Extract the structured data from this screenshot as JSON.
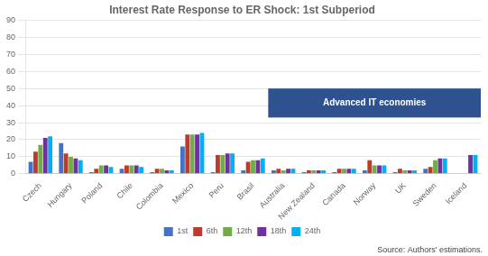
{
  "chart_data": {
    "type": "bar",
    "title": "Interest Rate Response to ER Shock: 1st Subperiod",
    "categories": [
      "Czech",
      "Hungary",
      "Poland",
      "Chile",
      "Colombia",
      "Mexico",
      "Peru",
      "Brasil",
      "Australia",
      "New Zealand",
      "Canada",
      "Norway",
      "UK",
      "Sweden",
      "Iceland"
    ],
    "series": [
      {
        "name": "1st",
        "color": "#4472C4",
        "values": [
          7,
          18,
          1,
          3,
          1,
          16,
          1,
          2,
          2,
          1,
          1,
          2,
          1,
          3,
          0
        ]
      },
      {
        "name": "6th",
        "color": "#C0392B",
        "values": [
          13,
          12,
          3,
          5,
          3,
          23,
          11,
          7,
          3,
          2,
          3,
          8,
          3,
          4,
          0
        ]
      },
      {
        "name": "12th",
        "color": "#70AD47",
        "values": [
          17,
          10,
          5,
          5,
          3,
          23,
          11,
          8,
          2,
          2,
          3,
          5,
          2,
          8,
          0
        ]
      },
      {
        "name": "18th",
        "color": "#7030A0",
        "values": [
          21,
          9,
          5,
          5,
          2,
          23,
          12,
          8,
          3,
          2,
          3,
          5,
          2,
          9,
          11
        ]
      },
      {
        "name": "24th",
        "color": "#00B0F0",
        "values": [
          22,
          8,
          4,
          4,
          2,
          24,
          12,
          9,
          3,
          2,
          3,
          5,
          2,
          9,
          11
        ]
      }
    ],
    "ylim": [
      0,
      90
    ],
    "yticks": [
      0,
      10,
      20,
      30,
      40,
      50,
      60,
      70,
      80,
      90
    ],
    "grid": true,
    "legend": "bottom",
    "annotations": [
      {
        "text": "Advanced IT economies",
        "x_start": "Australia",
        "x_end": "Iceland",
        "y_start": 33,
        "y_end": 50,
        "color": "#2E5190"
      }
    ],
    "source": "Source: Authors' estimations."
  }
}
